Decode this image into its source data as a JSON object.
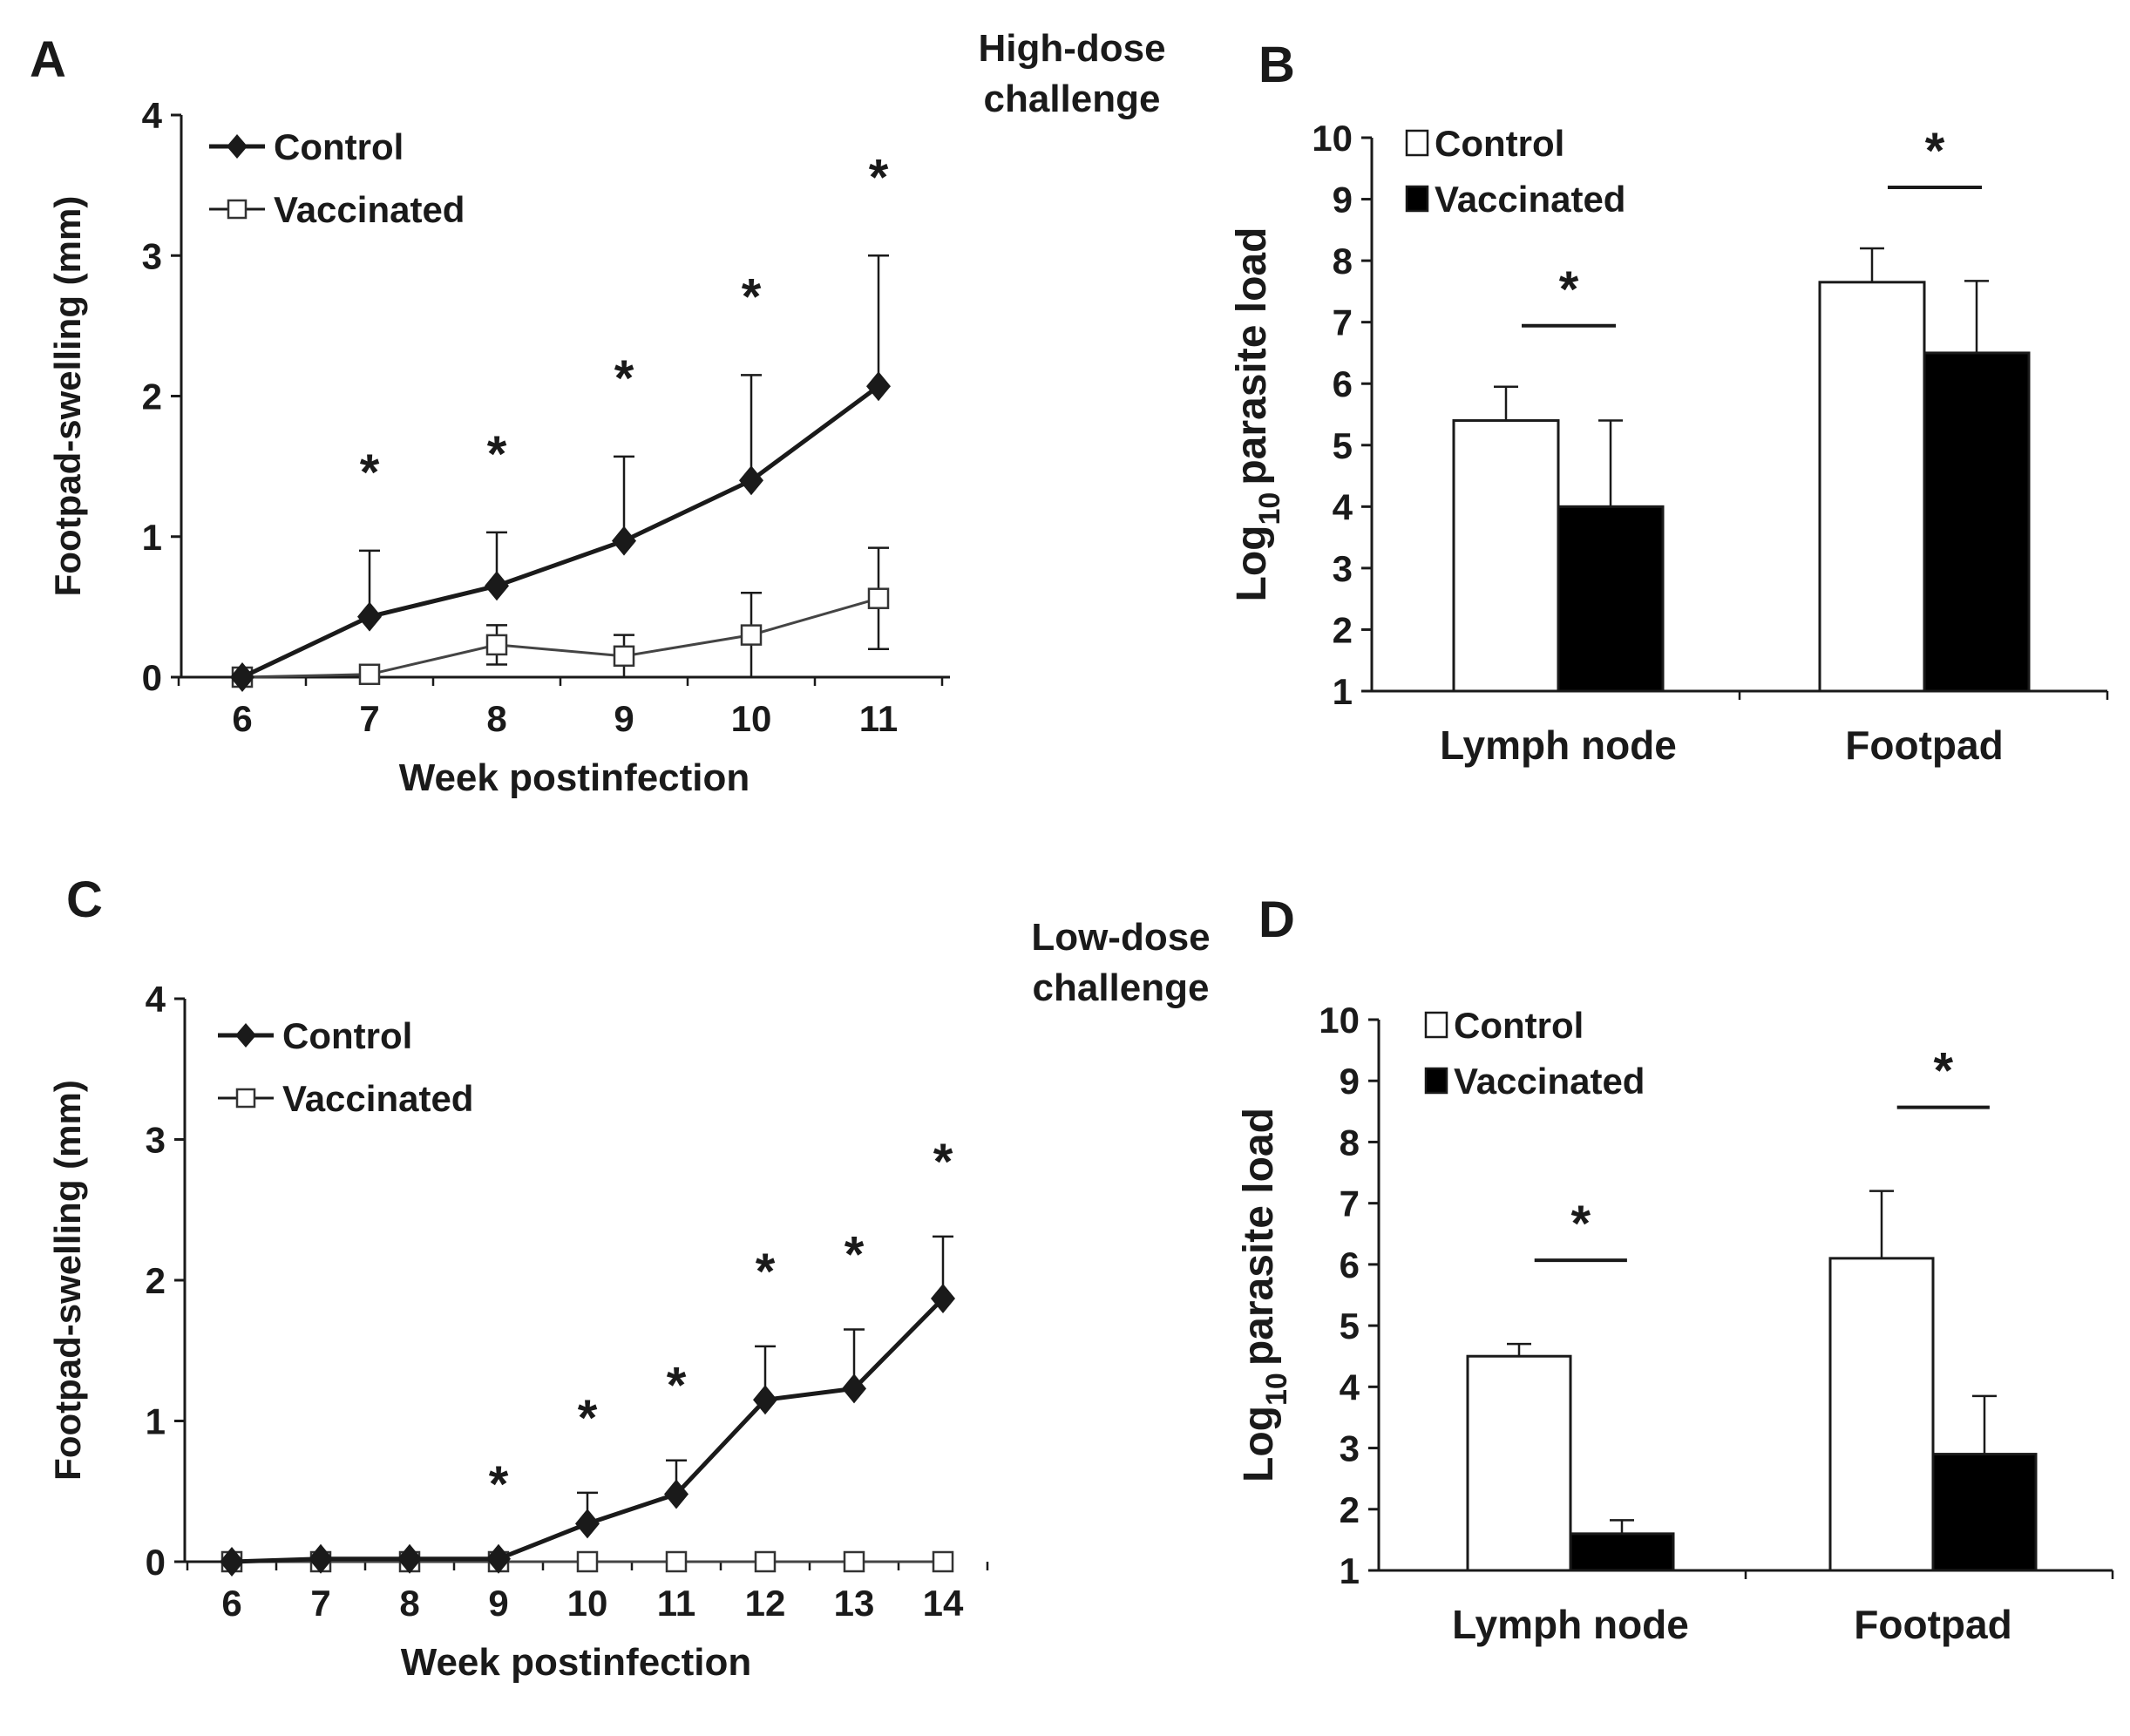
{
  "chart_data": [
    {
      "panel": "A",
      "type": "line",
      "annotation": "High-dose challenge",
      "xlabel": "Week postinfection",
      "ylabel": "Footpad-swelling (mm)",
      "x": [
        6,
        7,
        8,
        9,
        10,
        11
      ],
      "x_tick_labels": [
        "6",
        "7",
        "8",
        "9",
        "10",
        "11"
      ],
      "ylim": [
        0,
        4
      ],
      "y_ticks": [
        "0",
        "1",
        "2",
        "3",
        "4"
      ],
      "series": [
        {
          "name": "Control",
          "marker": "filled-diamond",
          "values": [
            0,
            0.43,
            0.65,
            0.97,
            1.4,
            2.07
          ],
          "error": [
            0,
            0.47,
            0.38,
            0.6,
            0.75,
            0.93
          ]
        },
        {
          "name": "Vaccinated",
          "marker": "open-square",
          "values": [
            0,
            0.02,
            0.23,
            0.15,
            0.3,
            0.56
          ],
          "error": [
            0,
            0,
            0.14,
            0.15,
            0.3,
            0.36
          ]
        }
      ],
      "significance": [
        {
          "x": 7,
          "label": "*"
        },
        {
          "x": 8,
          "label": "*"
        },
        {
          "x": 9,
          "label": "*"
        },
        {
          "x": 10,
          "label": "*"
        },
        {
          "x": 11,
          "label": "*"
        }
      ],
      "legend_position": "top-left"
    },
    {
      "panel": "B",
      "type": "bar",
      "ylabel_main": "Log",
      "ylabel_sub": "10",
      "ylabel_rest": "parasite load",
      "categories": [
        "Lymph node",
        "Footpad"
      ],
      "ylim": [
        1,
        10
      ],
      "y_ticks": [
        "1",
        "2",
        "3",
        "4",
        "5",
        "6",
        "7",
        "8",
        "9",
        "10"
      ],
      "series": [
        {
          "name": "Control",
          "fill": "white",
          "values": [
            5.4,
            7.65
          ],
          "error": [
            0.55,
            0.55
          ]
        },
        {
          "name": "Vaccinated",
          "fill": "black",
          "values": [
            4.0,
            6.5
          ],
          "error": [
            1.4,
            1.17
          ]
        }
      ],
      "significance": [
        {
          "category": 0,
          "label": "*"
        },
        {
          "category": 1,
          "label": "*"
        }
      ],
      "legend_position": "top-left"
    },
    {
      "panel": "C",
      "type": "line",
      "annotation": "Low-dose challenge",
      "xlabel": "Week postinfection",
      "ylabel": "Footpad-swelling (mm)",
      "x": [
        6,
        7,
        8,
        9,
        10,
        11,
        12,
        13,
        14
      ],
      "x_tick_labels": [
        "6",
        "7",
        "8",
        "9",
        "10",
        "11",
        "12",
        "13",
        "14"
      ],
      "ylim": [
        0,
        4
      ],
      "y_ticks": [
        "0",
        "1",
        "2",
        "3",
        "4"
      ],
      "series": [
        {
          "name": "Control",
          "marker": "filled-diamond",
          "values": [
            0,
            0.02,
            0.02,
            0.02,
            0.27,
            0.48,
            1.15,
            1.23,
            1.87
          ],
          "error": [
            0,
            0,
            0,
            0,
            0.22,
            0.24,
            0.38,
            0.42,
            0.44
          ]
        },
        {
          "name": "Vaccinated",
          "marker": "open-square",
          "values": [
            0,
            0,
            0,
            0,
            0,
            0,
            0,
            0,
            0
          ],
          "error": [
            0,
            0,
            0,
            0,
            0,
            0,
            0,
            0,
            0
          ]
        }
      ],
      "significance": [
        {
          "x": 9,
          "label": "*"
        },
        {
          "x": 10,
          "label": "*"
        },
        {
          "x": 11,
          "label": "*"
        },
        {
          "x": 12,
          "label": "*"
        },
        {
          "x": 13,
          "label": "*"
        },
        {
          "x": 14,
          "label": "*"
        }
      ],
      "legend_position": "top-left"
    },
    {
      "panel": "D",
      "type": "bar",
      "ylabel_main": "Log",
      "ylabel_sub": "10",
      "ylabel_rest": "parasite load",
      "categories": [
        "Lymph node",
        "Footpad"
      ],
      "ylim": [
        1,
        10
      ],
      "y_ticks": [
        "1",
        "2",
        "3",
        "4",
        "5",
        "6",
        "7",
        "8",
        "9",
        "10"
      ],
      "series": [
        {
          "name": "Control",
          "fill": "white",
          "values": [
            4.5,
            6.1
          ],
          "error": [
            0.2,
            1.1
          ]
        },
        {
          "name": "Vaccinated",
          "fill": "black",
          "values": [
            1.6,
            2.9
          ],
          "error": [
            0.22,
            0.95
          ]
        }
      ],
      "significance": [
        {
          "category": 0,
          "label": "*"
        },
        {
          "category": 1,
          "label": "*"
        }
      ],
      "legend_position": "top-left"
    }
  ]
}
